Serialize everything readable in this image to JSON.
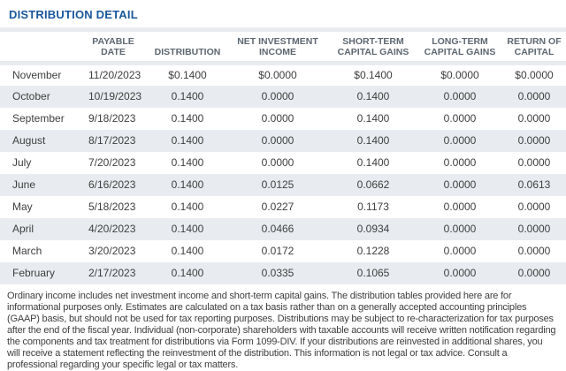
{
  "title": "DISTRIBUTION DETAIL",
  "colors": {
    "title_blue": "#1a579b",
    "band_gray": "#e8ecf0",
    "header_text": "#5d6771",
    "body_text": "#3e3e3e"
  },
  "table": {
    "columns": [
      "",
      "PAYABLE DATE",
      "DISTRIBUTION",
      "NET INVESTMENT\nINCOME",
      "SHORT-TERM\nCAPITAL GAINS",
      "LONG-TERM\nCAPITAL GAINS",
      "RETURN OF\nCAPITAL"
    ],
    "rows": [
      {
        "month": "November",
        "payable_date": "11/20/2023",
        "distribution": "$0.1400",
        "net_investment_income": "$0.0000",
        "short_term_capital_gains": "$0.1400",
        "long_term_capital_gains": "$0.0000",
        "return_of_capital": "$0.0000"
      },
      {
        "month": "October",
        "payable_date": "10/19/2023",
        "distribution": "0.1400",
        "net_investment_income": "0.0000",
        "short_term_capital_gains": "0.1400",
        "long_term_capital_gains": "0.0000",
        "return_of_capital": "0.0000"
      },
      {
        "month": "September",
        "payable_date": "9/18/2023",
        "distribution": "0.1400",
        "net_investment_income": "0.0000",
        "short_term_capital_gains": "0.1400",
        "long_term_capital_gains": "0.0000",
        "return_of_capital": "0.0000"
      },
      {
        "month": "August",
        "payable_date": "8/17/2023",
        "distribution": "0.1400",
        "net_investment_income": "0.0000",
        "short_term_capital_gains": "0.1400",
        "long_term_capital_gains": "0.0000",
        "return_of_capital": "0.0000"
      },
      {
        "month": "July",
        "payable_date": "7/20/2023",
        "distribution": "0.1400",
        "net_investment_income": "0.0000",
        "short_term_capital_gains": "0.1400",
        "long_term_capital_gains": "0.0000",
        "return_of_capital": "0.0000"
      },
      {
        "month": "June",
        "payable_date": "6/16/2023",
        "distribution": "0.1400",
        "net_investment_income": "0.0125",
        "short_term_capital_gains": "0.0662",
        "long_term_capital_gains": "0.0000",
        "return_of_capital": "0.0613"
      },
      {
        "month": "May",
        "payable_date": "5/18/2023",
        "distribution": "0.1400",
        "net_investment_income": "0.0227",
        "short_term_capital_gains": "0.1173",
        "long_term_capital_gains": "0.0000",
        "return_of_capital": "0.0000"
      },
      {
        "month": "April",
        "payable_date": "4/20/2023",
        "distribution": "0.1400",
        "net_investment_income": "0.0466",
        "short_term_capital_gains": "0.0934",
        "long_term_capital_gains": "0.0000",
        "return_of_capital": "0.0000"
      },
      {
        "month": "March",
        "payable_date": "3/20/2023",
        "distribution": "0.1400",
        "net_investment_income": "0.0172",
        "short_term_capital_gains": "0.1228",
        "long_term_capital_gains": "0.0000",
        "return_of_capital": "0.0000"
      },
      {
        "month": "February",
        "payable_date": "2/17/2023",
        "distribution": "0.1400",
        "net_investment_income": "0.0335",
        "short_term_capital_gains": "0.1065",
        "long_term_capital_gains": "0.0000",
        "return_of_capital": "0.0000"
      }
    ]
  },
  "footnote": "Ordinary income includes net investment income and short-term capital gains. The distribution tables provided here are for informational purposes only. Estimates are calculated on a tax basis rather than on a generally accepted accounting principles (GAAP) basis, but should not be used for tax reporting purposes. Distributions may be subject to re-characterization for tax purposes after the end of the fiscal year. Individual (non-corporate) shareholders with taxable accounts will receive written notification regarding the components and tax treatment for distributions via Form 1099-DIV. If your distributions are reinvested in additional shares, you will receive a statement reflecting the reinvestment of the distribution. This information is not legal or tax advice. Consult a professional regarding your specific legal or tax matters."
}
